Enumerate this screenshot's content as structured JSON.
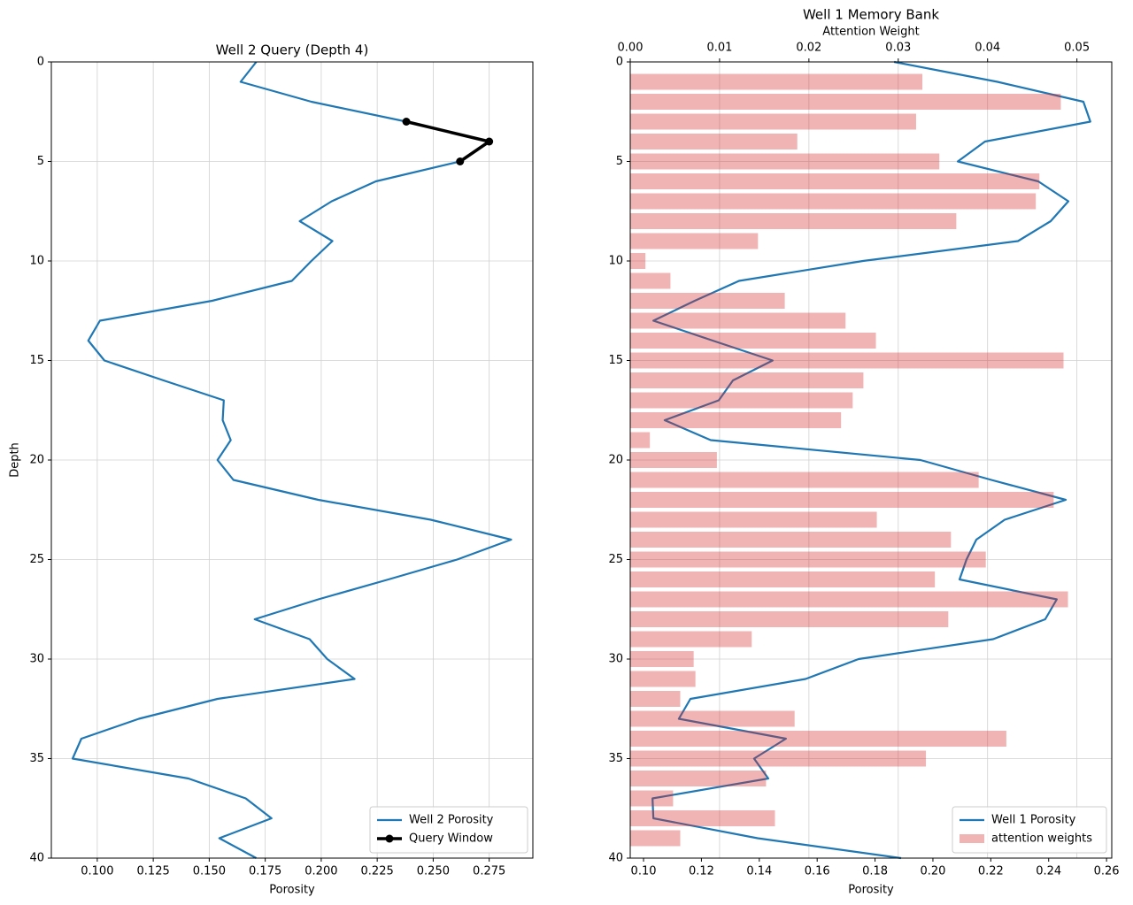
{
  "chart_data": [
    {
      "type": "line",
      "title": "Well 2 Query (Depth 4)",
      "xlabel": "Porosity",
      "ylabel": "Depth",
      "xlim": [
        0.0795,
        0.2945
      ],
      "xticks": [
        {
          "value": 0.1,
          "label": "0.100"
        },
        0.125,
        {
          "value": 0.15,
          "label": "0.150"
        },
        0.175,
        {
          "value": 0.2,
          "label": "0.200"
        },
        0.225,
        {
          "value": 0.25,
          "label": "0.250"
        },
        0.275
      ],
      "ylim": [
        0,
        40
      ],
      "y_inverted": true,
      "yticks": [
        0,
        5,
        10,
        15,
        20,
        25,
        30,
        35,
        40
      ],
      "grid": true,
      "legend": "lower right",
      "series": [
        {
          "name": "Well 2 Porosity",
          "color": "#1f77b4",
          "depth": [
            0,
            1,
            2,
            3,
            4,
            5,
            6,
            7,
            8,
            9,
            10,
            11,
            12,
            13,
            14,
            15,
            16,
            17,
            18,
            19,
            20,
            21,
            22,
            23,
            24,
            25,
            26,
            27,
            28,
            29,
            30,
            31,
            32,
            33,
            34,
            35,
            36,
            37,
            38,
            39,
            40
          ],
          "values": [
            0.171,
            0.164,
            0.1956,
            0.238,
            0.275,
            0.262,
            0.2244,
            0.2047,
            0.1904,
            0.205,
            0.1956,
            0.1869,
            0.1513,
            0.1012,
            0.096,
            0.1032,
            0.1296,
            0.1565,
            0.156,
            0.1596,
            0.1537,
            0.1608,
            0.1987,
            0.2489,
            0.2848,
            0.2607,
            0.23,
            0.1987,
            0.1703,
            0.1948,
            0.2027,
            0.2149,
            0.1537,
            0.1186,
            0.0929,
            0.089,
            0.1407,
            0.1663,
            0.1778,
            0.1545,
            0.171
          ]
        },
        {
          "name": "Query Window",
          "color": "#000000",
          "marker": "o",
          "depth": [
            3,
            4,
            5
          ],
          "values": [
            0.238,
            0.275,
            0.262
          ]
        }
      ]
    },
    {
      "type": "line",
      "title": "Well 1 Memory Bank",
      "xlabel": "Porosity",
      "x2label": "Attention Weight",
      "xlim": [
        0.0954,
        0.2618
      ],
      "xticks": [
        {
          "value": 0.1,
          "label": "0.10"
        },
        0.12,
        0.14,
        0.16,
        0.18,
        {
          "value": 0.2,
          "label": "0.20"
        },
        0.22,
        0.24,
        0.26
      ],
      "x2lim": [
        0,
        0.0539
      ],
      "x2ticks": [
        {
          "value": 0,
          "label": "0.00"
        },
        0.01,
        0.02,
        0.03,
        0.04,
        0.05
      ],
      "ylim": [
        0,
        40
      ],
      "y_inverted": true,
      "yticks": [
        0,
        5,
        10,
        15,
        20,
        25,
        30,
        35,
        40
      ],
      "grid": true,
      "legend": "lower right",
      "series": [
        {
          "name": "Well 1 Porosity",
          "color": "#1f77b4",
          "depth": [
            0,
            1,
            2,
            3,
            4,
            5,
            6,
            7,
            8,
            9,
            10,
            11,
            12,
            13,
            14,
            15,
            16,
            17,
            18,
            19,
            20,
            21,
            22,
            23,
            24,
            25,
            26,
            27,
            28,
            29,
            30,
            31,
            32,
            33,
            34,
            35,
            36,
            37,
            38,
            39,
            40
          ],
          "values": [
            0.1866,
            0.2223,
            0.252,
            0.2544,
            0.218,
            0.2086,
            0.2364,
            0.2468,
            0.2407,
            0.2294,
            0.1758,
            0.133,
            0.1177,
            0.1034,
            0.1239,
            0.1446,
            0.1309,
            0.126,
            0.1073,
            0.1232,
            0.1957,
            0.2202,
            0.2459,
            0.2248,
            0.215,
            0.2116,
            0.2092,
            0.2428,
            0.2388,
            0.2208,
            0.1743,
            0.156,
            0.1162,
            0.1122,
            0.1492,
            0.1382,
            0.1431,
            0.1031,
            0.1034,
            0.1394,
            0.189
          ]
        },
        {
          "name": "attention weights",
          "type": "bar",
          "axis": "x2",
          "color": "#d62728",
          "alpha": 0.35,
          "depth": [
            1,
            2,
            3,
            4,
            5,
            6,
            7,
            8,
            9,
            10,
            11,
            12,
            13,
            14,
            15,
            16,
            17,
            18,
            19,
            20,
            21,
            22,
            23,
            24,
            25,
            26,
            27,
            28,
            29,
            30,
            31,
            32,
            33,
            34,
            35,
            36,
            37,
            38,
            39
          ],
          "values": [
            0.0327,
            0.0482,
            0.032,
            0.0187,
            0.0346,
            0.0458,
            0.0454,
            0.0365,
            0.0143,
            0.0017,
            0.0045,
            0.0173,
            0.0241,
            0.0275,
            0.0485,
            0.0261,
            0.0249,
            0.0236,
            0.0022,
            0.0097,
            0.039,
            0.0474,
            0.0276,
            0.0359,
            0.0398,
            0.0341,
            0.049,
            0.0356,
            0.0136,
            0.0071,
            0.0073,
            0.0056,
            0.0184,
            0.0421,
            0.0331,
            0.0152,
            0.0048,
            0.0162,
            0.0056
          ]
        }
      ]
    }
  ]
}
